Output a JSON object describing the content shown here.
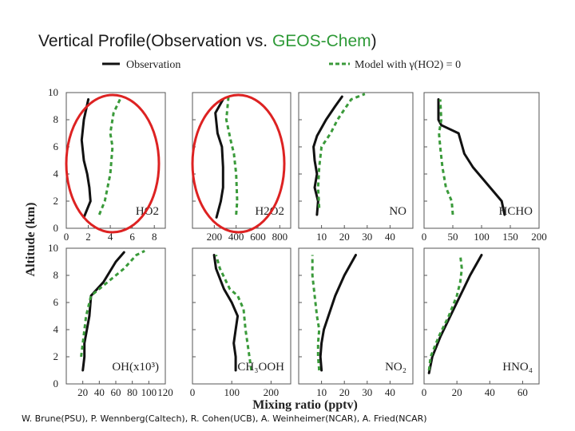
{
  "slide": {
    "title_prefix": "Vertical Profile(Observation vs. ",
    "title_highlight": "GEOS-Chem",
    "title_suffix": ")",
    "credits": "W. Brune(PSU), P. Wennberg(Caltech), R. Cohen(UCB), A. Weinheimer(NCAR), A. Fried(NCAR)"
  },
  "colors": {
    "observation": "#111111",
    "model": "#3a9a3a",
    "highlight_circle": "#dd2222",
    "title_accent": "#2e9a37"
  },
  "chart_data": {
    "type": "line",
    "ylabel": "Altitude (km)",
    "xlabel": "Mixing ratio (pptv)",
    "ylim": [
      0,
      10
    ],
    "yticks": [
      0,
      2,
      4,
      6,
      8,
      10
    ],
    "legend": {
      "placement": "top",
      "observation_label": "Observation",
      "model_label": "Model with γ(HO2) = 0"
    },
    "panels": [
      {
        "id": "HO2",
        "label": "HO2",
        "xlim": [
          0,
          9
        ],
        "xticks": [
          0,
          2,
          4,
          6,
          8
        ],
        "highlighted": true,
        "series": [
          {
            "name": "Observation",
            "style": "solid",
            "points": [
              [
                1.6,
                0.8
              ],
              [
                2.2,
                2.0
              ],
              [
                2.1,
                3.0
              ],
              [
                1.9,
                4.0
              ],
              [
                1.6,
                5.0
              ],
              [
                1.4,
                6.5
              ],
              [
                1.6,
                8.0
              ],
              [
                2.0,
                9.5
              ]
            ]
          },
          {
            "name": "Model",
            "style": "dashed",
            "points": [
              [
                3.0,
                1.0
              ],
              [
                3.5,
                2.0
              ],
              [
                4.0,
                4.0
              ],
              [
                4.2,
                6.0
              ],
              [
                4.0,
                7.0
              ],
              [
                4.3,
                8.5
              ],
              [
                5.0,
                9.7
              ]
            ]
          }
        ]
      },
      {
        "id": "H2O2",
        "label": "H2O2",
        "xlim": [
          0,
          900
        ],
        "xticks": [
          200,
          400,
          600,
          800
        ],
        "highlighted": true,
        "series": [
          {
            "name": "Observation",
            "style": "solid",
            "points": [
              [
                220,
                0.8
              ],
              [
                260,
                2.0
              ],
              [
                280,
                3.0
              ],
              [
                280,
                4.5
              ],
              [
                270,
                6.0
              ],
              [
                230,
                7.0
              ],
              [
                210,
                8.5
              ],
              [
                280,
                9.5
              ]
            ]
          },
          {
            "name": "Model",
            "style": "dashed",
            "points": [
              [
                400,
                1.0
              ],
              [
                410,
                2.0
              ],
              [
                400,
                4.0
              ],
              [
                380,
                5.5
              ],
              [
                350,
                6.5
              ],
              [
                310,
                8.0
              ],
              [
                330,
                9.7
              ]
            ]
          }
        ]
      },
      {
        "id": "NO",
        "label": "NO",
        "xlim": [
          0,
          50
        ],
        "xticks": [
          10,
          20,
          30,
          40
        ],
        "highlighted": false,
        "series": [
          {
            "name": "Observation",
            "style": "solid",
            "points": [
              [
                8,
                1.0
              ],
              [
                8.5,
                2.0
              ],
              [
                7,
                3.0
              ],
              [
                8,
                4.0
              ],
              [
                7,
                5.0
              ],
              [
                6.5,
                6.0
              ],
              [
                8,
                6.8
              ],
              [
                12,
                8.0
              ],
              [
                16,
                9.0
              ],
              [
                19,
                9.7
              ]
            ]
          },
          {
            "name": "Model",
            "style": "dashed",
            "points": [
              [
                9,
                1.5
              ],
              [
                8.5,
                3.0
              ],
              [
                9,
                4.5
              ],
              [
                10,
                6.0
              ],
              [
                14,
                7.0
              ],
              [
                17,
                8.0
              ],
              [
                19,
                8.5
              ],
              [
                23,
                9.5
              ],
              [
                29,
                9.9
              ]
            ]
          }
        ]
      },
      {
        "id": "HCHO",
        "label": "HCHO",
        "xlim": [
          0,
          200
        ],
        "xticks": [
          0,
          50,
          100,
          150,
          200
        ],
        "highlighted": false,
        "series": [
          {
            "name": "Observation",
            "style": "solid",
            "points": [
              [
                140,
                1.0
              ],
              [
                135,
                2.0
              ],
              [
                115,
                3.0
              ],
              [
                85,
                4.5
              ],
              [
                70,
                5.5
              ],
              [
                60,
                7.0
              ],
              [
                30,
                7.6
              ],
              [
                25,
                8.0
              ],
              [
                25,
                9.5
              ]
            ]
          },
          {
            "name": "Model",
            "style": "dashed",
            "points": [
              [
                50,
                1.0
              ],
              [
                48,
                2.0
              ],
              [
                38,
                3.0
              ],
              [
                32,
                4.5
              ],
              [
                28,
                6.0
              ],
              [
                26,
                7.0
              ],
              [
                30,
                8.0
              ],
              [
                28,
                9.5
              ]
            ]
          }
        ]
      },
      {
        "id": "OH",
        "label": "OH(x10³)",
        "xlim": [
          0,
          120
        ],
        "xticks": [
          20,
          40,
          60,
          80,
          100,
          120
        ],
        "highlighted": false,
        "series": [
          {
            "name": "Observation",
            "style": "solid",
            "points": [
              [
                20,
                1.0
              ],
              [
                22,
                2.0
              ],
              [
                22,
                3.0
              ],
              [
                25,
                4.0
              ],
              [
                28,
                5.0
              ],
              [
                30,
                6.5
              ],
              [
                45,
                7.5
              ],
              [
                60,
                9.0
              ],
              [
                70,
                9.7
              ]
            ]
          },
          {
            "name": "Model",
            "style": "dashed",
            "points": [
              [
                18,
                2.0
              ],
              [
                20,
                3.0
              ],
              [
                24,
                5.0
              ],
              [
                30,
                6.5
              ],
              [
                50,
                7.5
              ],
              [
                70,
                8.5
              ],
              [
                85,
                9.5
              ],
              [
                95,
                9.8
              ]
            ]
          }
        ]
      },
      {
        "id": "CH3OOH",
        "label": "CH₃OOH",
        "xlim": [
          0,
          250
        ],
        "xticks": [
          0,
          100,
          200
        ],
        "highlighted": false,
        "series": [
          {
            "name": "Observation",
            "style": "solid",
            "points": [
              [
                110,
                1.0
              ],
              [
                110,
                2.0
              ],
              [
                105,
                3.0
              ],
              [
                110,
                4.0
              ],
              [
                115,
                5.0
              ],
              [
                100,
                6.0
              ],
              [
                80,
                7.0
              ],
              [
                60,
                8.5
              ],
              [
                55,
                9.5
              ]
            ]
          },
          {
            "name": "Model",
            "style": "dashed",
            "points": [
              [
                150,
                1.0
              ],
              [
                145,
                2.0
              ],
              [
                140,
                3.0
              ],
              [
                135,
                4.0
              ],
              [
                130,
                5.5
              ],
              [
                115,
                6.5
              ],
              [
                95,
                7.0
              ],
              [
                70,
                8.5
              ],
              [
                60,
                9.5
              ]
            ]
          }
        ]
      },
      {
        "id": "NO2",
        "label": "NO₂",
        "xlim": [
          0,
          50
        ],
        "xticks": [
          10,
          20,
          30,
          40
        ],
        "highlighted": false,
        "series": [
          {
            "name": "Observation",
            "style": "solid",
            "points": [
              [
                10,
                1.0
              ],
              [
                9.5,
                2.0
              ],
              [
                10,
                3.0
              ],
              [
                11,
                4.0
              ],
              [
                13,
                5.0
              ],
              [
                16,
                6.5
              ],
              [
                20,
                8.0
              ],
              [
                25,
                9.5
              ]
            ]
          },
          {
            "name": "Model",
            "style": "dashed",
            "points": [
              [
                9,
                1.0
              ],
              [
                8.5,
                2.0
              ],
              [
                8.5,
                3.0
              ],
              [
                9,
                4.0
              ],
              [
                8,
                5.0
              ],
              [
                7,
                6.5
              ],
              [
                6,
                8.0
              ],
              [
                6,
                9.5
              ]
            ]
          }
        ]
      },
      {
        "id": "HNO4",
        "label": "HNO₄",
        "xlim": [
          0,
          70
        ],
        "xticks": [
          0,
          20,
          40,
          60
        ],
        "highlighted": false,
        "series": [
          {
            "name": "Observation",
            "style": "solid",
            "points": [
              [
                3,
                0.8
              ],
              [
                5,
                2.0
              ],
              [
                10,
                3.5
              ],
              [
                14,
                4.5
              ],
              [
                20,
                6.0
              ],
              [
                24,
                7.0
              ],
              [
                28,
                8.0
              ],
              [
                35,
                9.5
              ]
            ]
          },
          {
            "name": "Model",
            "style": "dashed",
            "points": [
              [
                3,
                1.0
              ],
              [
                4,
                2.0
              ],
              [
                9,
                3.5
              ],
              [
                15,
                5.0
              ],
              [
                20,
                6.5
              ],
              [
                22,
                7.5
              ],
              [
                23,
                8.5
              ],
              [
                22,
                9.5
              ]
            ]
          }
        ]
      }
    ]
  }
}
